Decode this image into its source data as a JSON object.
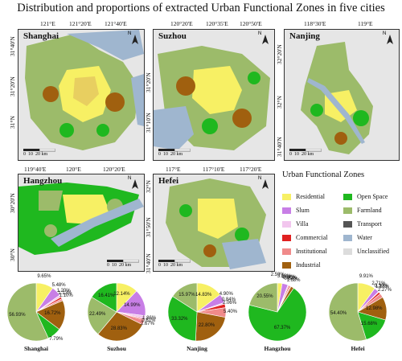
{
  "title": "Distribution and proportions of extracted Urban Functional Zones in five cities",
  "maps": {
    "shanghai": {
      "name": "Shanghai",
      "top": [
        "121°E",
        "121°20'E",
        "121°40'E"
      ],
      "side": [
        "31°40'N",
        "31°20'N",
        "31°N"
      ],
      "scale": [
        "0",
        "10",
        "20",
        "km"
      ]
    },
    "suzhou": {
      "name": "Suzhou",
      "top": [
        "120°20'E",
        "120°35'E",
        "120°50'E"
      ],
      "side": [
        "31°20'N",
        "31°10'N"
      ],
      "scale": [
        "0",
        "10",
        "20",
        "km"
      ]
    },
    "nanjing": {
      "name": "Nanjing",
      "top": [
        "118°30'E",
        "119°E"
      ],
      "side": [
        "32°20'N",
        "32°N",
        "31°40'N"
      ],
      "scale": [
        "0",
        "10",
        "20",
        "km"
      ]
    },
    "hangzhou": {
      "name": "Hangzhou",
      "top": [
        "119°40'E",
        "120°E",
        "120°20'E"
      ],
      "side": [
        "30°20'N",
        "30°N"
      ],
      "scale": [
        "0",
        "10",
        "20",
        "km"
      ]
    },
    "hefei": {
      "name": "Hefei",
      "top": [
        "117°E",
        "117°10'E",
        "117°20'E"
      ],
      "side": [
        "32°N",
        "31°50'N",
        "31°40'N"
      ],
      "scale": [
        "0",
        "10",
        "20",
        "km"
      ]
    }
  },
  "north_label": "N",
  "legend": {
    "title": "Urban Functional Zones",
    "items": [
      {
        "label": "Residential",
        "color": "#f7f064"
      },
      {
        "label": "Open Space",
        "color": "#1fb81f"
      },
      {
        "label": "Slum",
        "color": "#c87ee6"
      },
      {
        "label": "Farmland",
        "color": "#9cbb6a"
      },
      {
        "label": "Villa",
        "color": "#f2c6ee"
      },
      {
        "label": "Transport",
        "color": "#555555"
      },
      {
        "label": "Commercial",
        "color": "#e02020"
      },
      {
        "label": "Water",
        "color": "#9fb6cf"
      },
      {
        "label": "Institutional",
        "color": "#f08a8a"
      },
      {
        "label": "Unclassified",
        "color": "#dcdcdc"
      },
      {
        "label": "Industrial",
        "color": "#a0600f"
      }
    ]
  },
  "pies": [
    {
      "city": "Shanghai",
      "slices": [
        {
          "cls": "Residential",
          "pct": 9.65,
          "color": "#f7f064"
        },
        {
          "cls": "Slum",
          "pct": 5.48,
          "color": "#c87ee6"
        },
        {
          "cls": "Villa",
          "pct": 1.2,
          "color": "#f2c6ee"
        },
        {
          "cls": "Commercial",
          "pct": 1.13,
          "color": "#e02020"
        },
        {
          "cls": "Institutional",
          "pct": 1.1,
          "color": "#f08a8a"
        },
        {
          "cls": "Industrial",
          "pct": 16.72,
          "color": "#a0600f"
        },
        {
          "cls": "Open Space",
          "pct": 7.79,
          "color": "#1fb81f"
        },
        {
          "cls": "Farmland",
          "pct": 56.93,
          "color": "#9cbb6a"
        }
      ]
    },
    {
      "city": "Suzhou",
      "slices": [
        {
          "cls": "Residential",
          "pct": 12.14,
          "color": "#f7f064"
        },
        {
          "cls": "Slum",
          "pct": 14.99,
          "color": "#c87ee6"
        },
        {
          "cls": "Villa",
          "pct": 1.86,
          "color": "#f2c6ee"
        },
        {
          "cls": "Commercial",
          "pct": 0.61,
          "color": "#e02020"
        },
        {
          "cls": "Institutional",
          "pct": 2.67,
          "color": "#f08a8a"
        },
        {
          "cls": "Industrial",
          "pct": 28.83,
          "color": "#a0600f"
        },
        {
          "cls": "Farmland",
          "pct": 22.49,
          "color": "#9cbb6a"
        },
        {
          "cls": "Open Space",
          "pct": 16.41,
          "color": "#1fb81f"
        }
      ]
    },
    {
      "city": "Nanjing",
      "slices": [
        {
          "cls": "Residential",
          "pct": 14.83,
          "color": "#f7f064"
        },
        {
          "cls": "Slum",
          "pct": 4.9,
          "color": "#c87ee6"
        },
        {
          "cls": "Villa",
          "pct": 0.84,
          "color": "#f2c6ee"
        },
        {
          "cls": "Commercial",
          "pct": 2.06,
          "color": "#e02020"
        },
        {
          "cls": "Institutional",
          "pct": 5.4,
          "color": "#f08a8a"
        },
        {
          "cls": "Industrial",
          "pct": 22.8,
          "color": "#a0600f"
        },
        {
          "cls": "Open Space",
          "pct": 33.32,
          "color": "#1fb81f"
        },
        {
          "cls": "Farmland",
          "pct": 15.97,
          "color": "#9cbb6a"
        }
      ]
    },
    {
      "city": "Hangzhou",
      "slices": [
        {
          "cls": "Residential",
          "pct": 2.59,
          "color": "#f7f064"
        },
        {
          "cls": "Slum",
          "pct": 3.18,
          "color": "#c87ee6"
        },
        {
          "cls": "Villa",
          "pct": 0.64,
          "color": "#f2c6ee"
        },
        {
          "cls": "Commercial",
          "pct": 0.6,
          "color": "#e02020"
        },
        {
          "cls": "Institutional",
          "pct": 0.64,
          "color": "#f08a8a"
        },
        {
          "cls": "Industrial",
          "pct": 1.68,
          "color": "#a0600f"
        },
        {
          "cls": "Open Space",
          "pct": 67.37,
          "color": "#1fb81f"
        },
        {
          "cls": "Farmland",
          "pct": 20.55,
          "color": "#9cbb6a"
        }
      ]
    },
    {
      "city": "Hefei",
      "slices": [
        {
          "cls": "Residential",
          "pct": 9.91,
          "color": "#f7f064"
        },
        {
          "cls": "Slum",
          "pct": 2.71,
          "color": "#c87ee6"
        },
        {
          "cls": "Villa",
          "pct": 0.3,
          "color": "#f2c6ee"
        },
        {
          "cls": "Commercial",
          "pct": 1.18,
          "color": "#e02020"
        },
        {
          "cls": "Institutional",
          "pct": 2.27,
          "color": "#f08a8a"
        },
        {
          "cls": "Industrial",
          "pct": 12.98,
          "color": "#a0600f"
        },
        {
          "cls": "Open Space",
          "pct": 15.68,
          "color": "#1fb81f"
        },
        {
          "cls": "Farmland",
          "pct": 54.4,
          "color": "#9cbb6a"
        }
      ]
    }
  ]
}
